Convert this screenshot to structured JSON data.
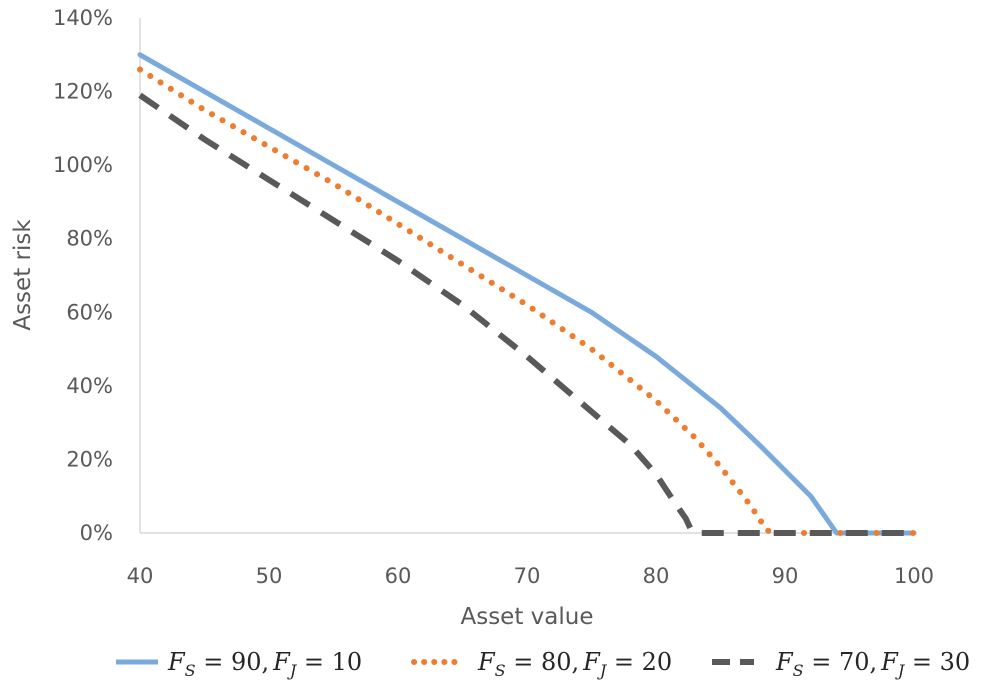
{
  "chart_data": {
    "type": "line",
    "title": "",
    "xlabel": "Asset value",
    "ylabel": "Asset risk",
    "xlim": [
      40,
      100
    ],
    "ylim": [
      0,
      1.4
    ],
    "xticks": [
      40,
      50,
      60,
      70,
      80,
      90,
      100
    ],
    "xtick_labels": [
      "40",
      "50",
      "60",
      "70",
      "80",
      "90",
      "100"
    ],
    "yticks": [
      0,
      0.2,
      0.4,
      0.6,
      0.8,
      1.0,
      1.2,
      1.4
    ],
    "ytick_labels": [
      "0%",
      "20%",
      "40%",
      "60%",
      "80%",
      "100%",
      "120%",
      "140%"
    ],
    "grid": false,
    "legend_position": "bottom",
    "series": [
      {
        "name": "F_S = 90, F_J = 10",
        "color": "#7aaadc",
        "style": "solid",
        "x": [
          40,
          45,
          50,
          55,
          60,
          65,
          70,
          75,
          80,
          85,
          88,
          90,
          92,
          93,
          93.6,
          93.9,
          94,
          96,
          98,
          100
        ],
        "y": [
          1.3,
          1.2,
          1.1,
          1.0,
          0.9,
          0.8,
          0.7,
          0.6,
          0.48,
          0.34,
          0.24,
          0.17,
          0.1,
          0.05,
          0.02,
          0.005,
          0,
          0,
          0,
          0
        ]
      },
      {
        "name": "F_S = 80, F_J = 20",
        "color": "#ed7d31",
        "style": "dotted",
        "x": [
          40,
          45,
          50,
          55,
          60,
          65,
          70,
          75,
          80,
          83,
          85,
          87,
          88,
          88.5,
          89,
          92,
          95,
          100
        ],
        "y": [
          1.26,
          1.15,
          1.05,
          0.95,
          0.84,
          0.73,
          0.62,
          0.5,
          0.36,
          0.26,
          0.18,
          0.09,
          0.04,
          0.01,
          0,
          0,
          0,
          0
        ]
      },
      {
        "name": "F_S = 70, F_J = 30",
        "color": "#595959",
        "style": "dashed",
        "x": [
          40,
          45,
          50,
          55,
          60,
          65,
          70,
          75,
          78,
          80,
          81.5,
          82.3,
          82.7,
          83,
          85,
          90,
          95,
          100
        ],
        "y": [
          1.19,
          1.07,
          0.96,
          0.85,
          0.74,
          0.62,
          0.48,
          0.33,
          0.24,
          0.16,
          0.08,
          0.04,
          0.01,
          0,
          0,
          0,
          0,
          0
        ]
      }
    ]
  },
  "legend": {
    "items": [
      {
        "label_main": "F",
        "sub1": "S",
        "mid": " = 90,",
        "label_f2": "F",
        "sub2": "J",
        "end": " = 10"
      },
      {
        "label_main": "F",
        "sub1": "S",
        "mid": " = 80,",
        "label_f2": "F",
        "sub2": "J",
        "end": " = 20"
      },
      {
        "label_main": "F",
        "sub1": "S",
        "mid": " = 70,",
        "label_f2": "F",
        "sub2": "J",
        "end": " = 30"
      }
    ]
  }
}
